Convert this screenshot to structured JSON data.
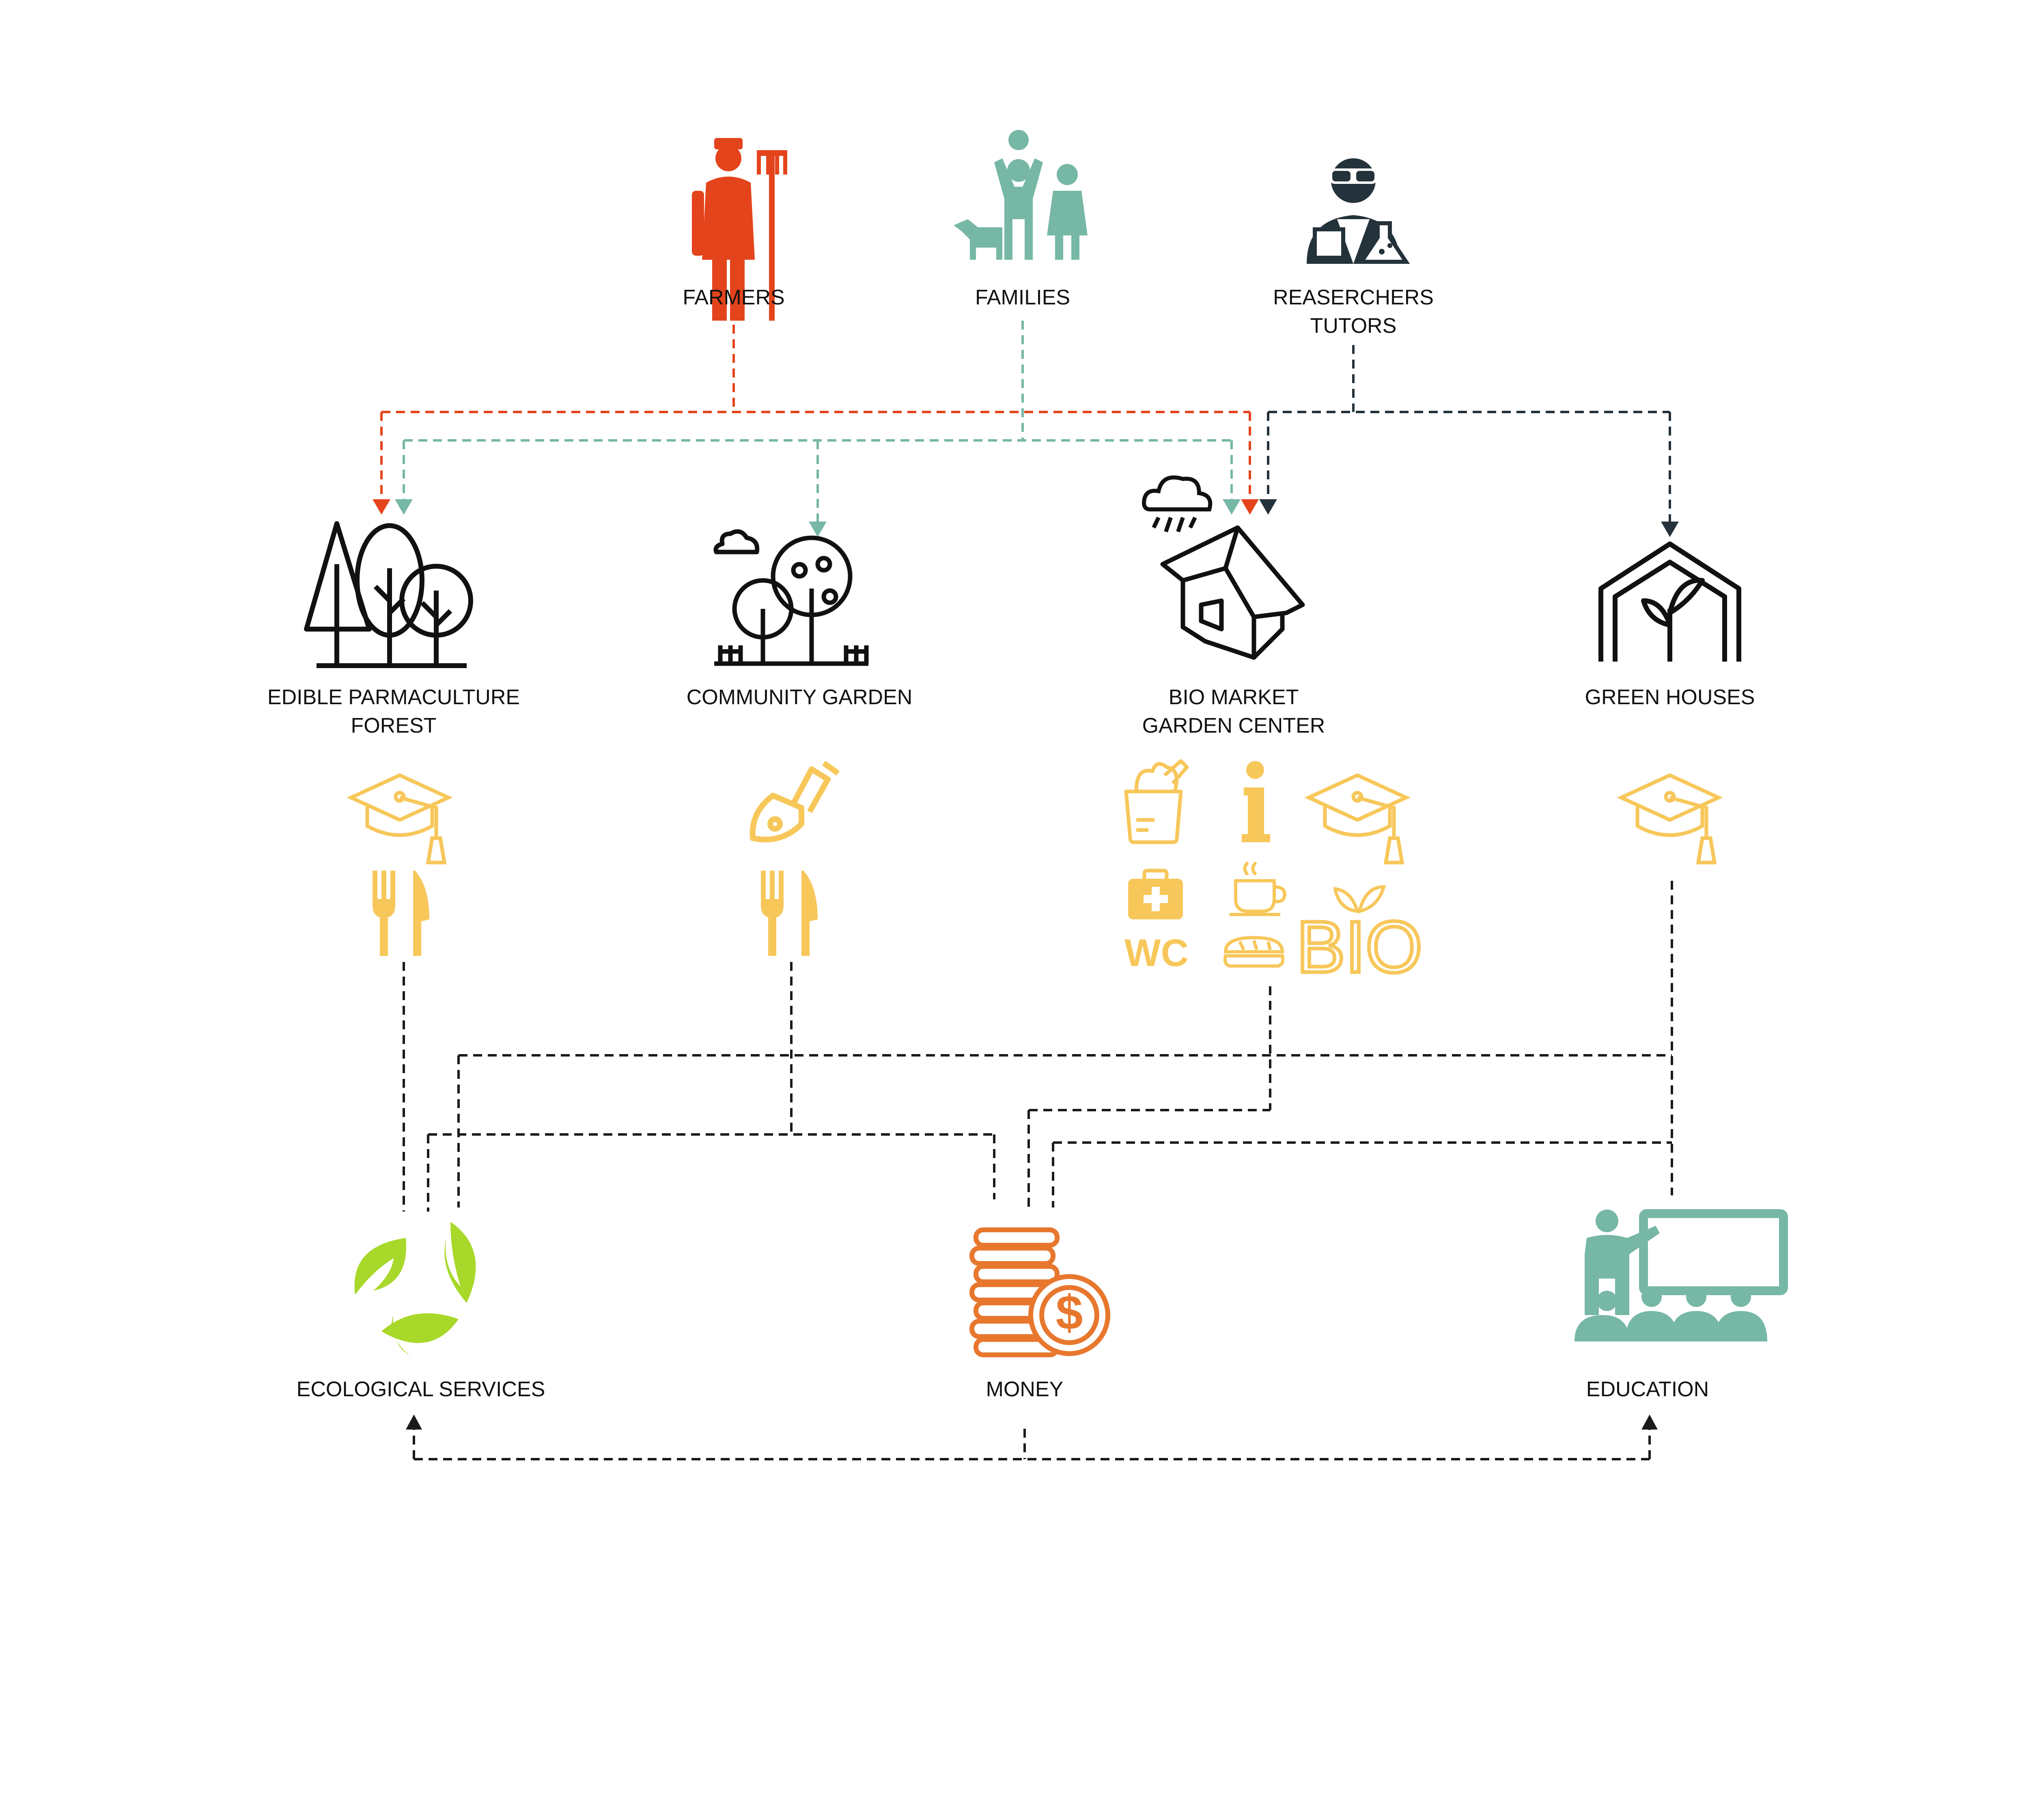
{
  "colors": {
    "farmers": "#e4441c",
    "families": "#76b7a5",
    "researchers": "#24323b",
    "outline": "#111111",
    "services": "#f7c75a",
    "ecological": "#a8d82a",
    "money": "#e8772e",
    "education": "#76b7a5",
    "connector": "#1a1a1a"
  },
  "actors": {
    "farmers": {
      "label": "FARMERS",
      "icon": "farmer-icon"
    },
    "families": {
      "label": "FAMILIES",
      "icon": "family-icon"
    },
    "researchers": {
      "label_line1": "REASERCHERS",
      "label_line2": "TUTORS",
      "icon": "researcher-icon"
    }
  },
  "places": {
    "forest": {
      "label_line1": "EDIBLE PARMACULTURE",
      "label_line2": "FOREST",
      "icon": "forest-icon"
    },
    "garden": {
      "label": "COMMUNITY GARDEN",
      "icon": "community-garden-icon"
    },
    "market": {
      "label_line1": "BIO MARKET",
      "label_line2": "GARDEN CENTER",
      "icon": "house-icon"
    },
    "greenhouses": {
      "label": "GREEN HOUSES",
      "icon": "greenhouse-icon"
    }
  },
  "service_icons": {
    "forest": [
      "graduation-cap-icon",
      "fork-knife-icon"
    ],
    "garden": [
      "shovel-icon",
      "fork-knife-icon"
    ],
    "market": [
      "grocery-bag-icon",
      "info-icon",
      "graduation-cap-icon",
      "first-aid-icon",
      "coffee-icon",
      "bread-icon"
    ],
    "greenhouses": [
      "graduation-cap-icon"
    ]
  },
  "market_badges": {
    "wc": "WC",
    "bio": "BIO"
  },
  "outcomes": {
    "ecological": {
      "label": "ECOLOGICAL SERVICES",
      "icon": "leaves-icon"
    },
    "money": {
      "label": "MONEY",
      "icon": "coins-icon"
    },
    "education": {
      "label": "EDUCATION",
      "icon": "classroom-icon"
    }
  },
  "weather_icon": "rain-cloud-icon"
}
